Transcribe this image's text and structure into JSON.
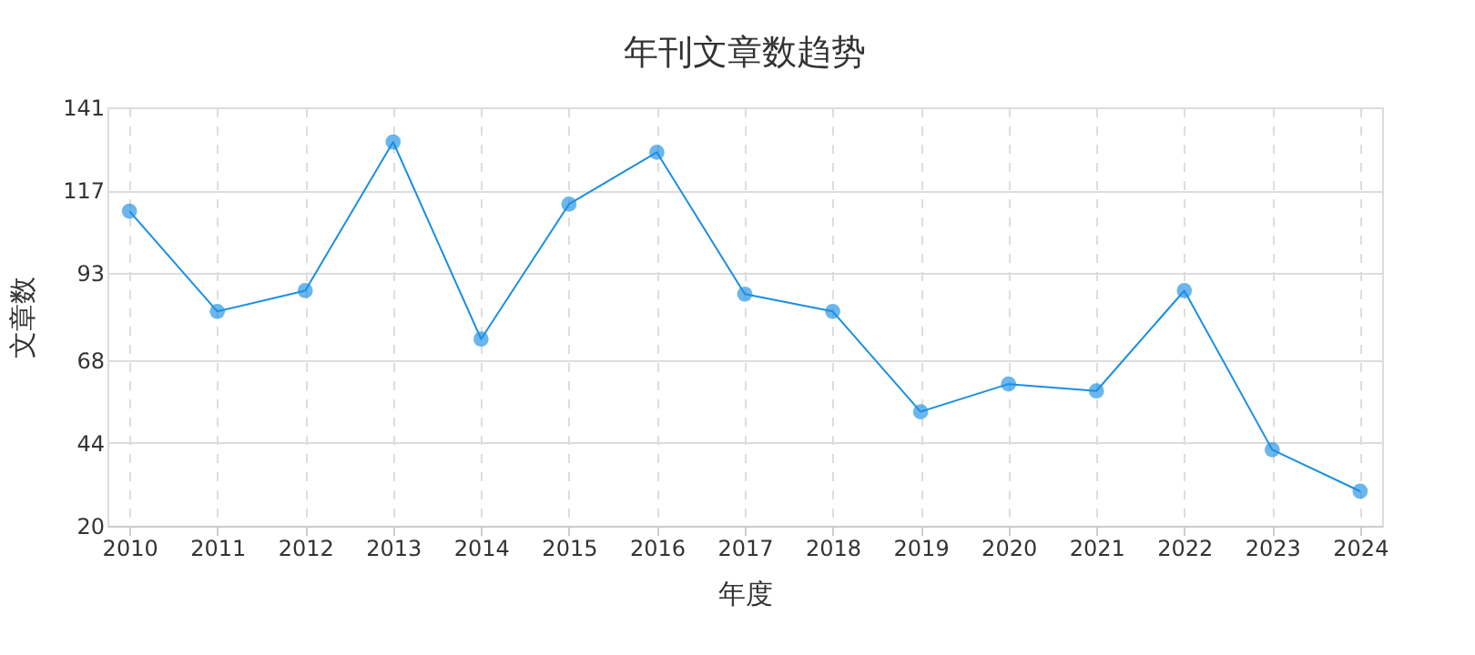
{
  "chart_data": {
    "type": "line",
    "title": "年刊文章数趋势",
    "xlabel": "年度",
    "ylabel": "文章数",
    "categories": [
      "2010",
      "2011",
      "2012",
      "2013",
      "2014",
      "2015",
      "2016",
      "2017",
      "2018",
      "2019",
      "2020",
      "2021",
      "2022",
      "2023",
      "2024"
    ],
    "series": [
      {
        "color": "#1a8fe3",
        "values": [
          111,
          82,
          88,
          131,
          74,
          113,
          128,
          87,
          82,
          53,
          61,
          59,
          88,
          42,
          30
        ]
      }
    ],
    "ylim": [
      20,
      141
    ],
    "yticks": [
      20,
      44,
      68,
      93,
      117,
      141
    ],
    "grid": true,
    "marker": "circle",
    "line_style": "solid"
  }
}
